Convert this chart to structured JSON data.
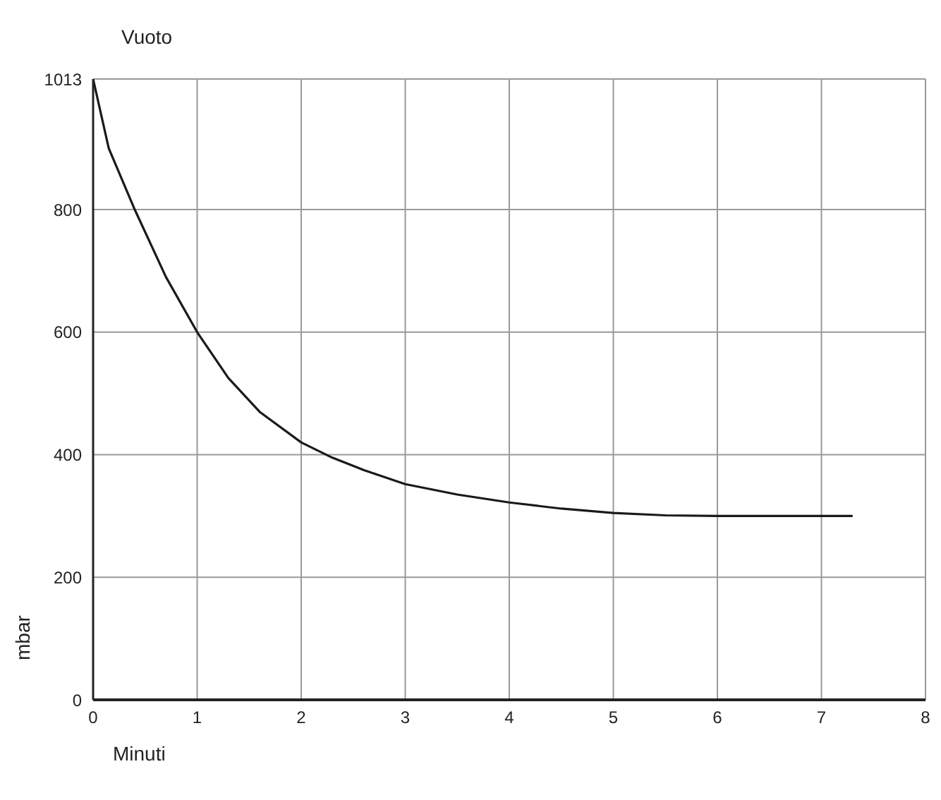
{
  "chart_data": {
    "type": "line",
    "title": "Vuoto",
    "xlabel": "Minuti",
    "ylabel": "mbar",
    "x": [
      0,
      0.15,
      0.4,
      0.7,
      1,
      1.3,
      1.6,
      2,
      2.3,
      2.6,
      3,
      3.5,
      4,
      4.5,
      5,
      5.5,
      6,
      6.5,
      7,
      7.3
    ],
    "series": [
      {
        "color": "#1a1a1a",
        "values": [
          1013,
          900,
          800,
          690,
          600,
          525,
          470,
          420,
          395,
          375,
          352,
          335,
          322,
          312,
          305,
          301,
          300,
          300,
          300,
          300
        ]
      }
    ],
    "xlim": [
      0,
      8
    ],
    "xticks": [
      0,
      1,
      2,
      3,
      4,
      5,
      6,
      7,
      8
    ],
    "ylim": [
      0,
      1013
    ],
    "yticks": [
      0,
      200,
      400,
      600,
      800,
      1013
    ],
    "grid": true,
    "marker": "none",
    "line_style": "solid"
  }
}
